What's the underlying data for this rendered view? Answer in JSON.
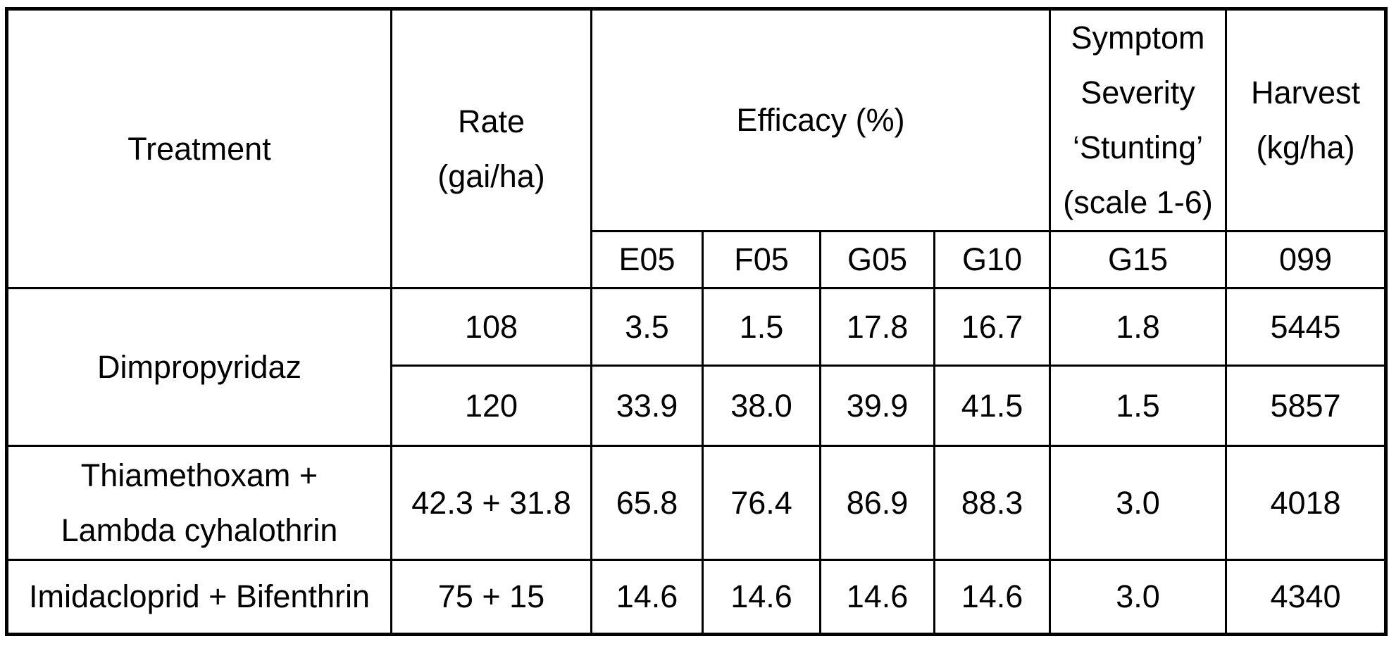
{
  "table": {
    "headers": {
      "treatment": "Treatment",
      "rate": "Rate\n(gai/ha)",
      "efficacy": "Efficacy (%)",
      "symptom_severity": "Symptom\nSeverity\n‘Stunting’\n(scale 1-6)",
      "harvest": "Harvest\n(kg/ha)"
    },
    "subheaders": [
      "E05",
      "F05",
      "G05",
      "G10",
      "G15",
      "099"
    ],
    "rows": [
      {
        "treatment": "Dimpropyridaz",
        "entries": [
          {
            "rate": "108",
            "values": [
              "3.5",
              "1.5",
              "17.8",
              "16.7",
              "1.8",
              "5445"
            ]
          },
          {
            "rate": "120",
            "values": [
              "33.9",
              "38.0",
              "39.9",
              "41.5",
              "1.5",
              "5857"
            ]
          }
        ]
      },
      {
        "treatment": "Thiamethoxam +\nLambda cyhalothrin",
        "entries": [
          {
            "rate": "42.3 + 31.8",
            "values": [
              "65.8",
              "76.4",
              "86.9",
              "88.3",
              "3.0",
              "4018"
            ]
          }
        ]
      },
      {
        "treatment": "Imidacloprid + Bifenthrin",
        "entries": [
          {
            "rate": "75 + 15",
            "values": [
              "14.6",
              "14.6",
              "14.6",
              "14.6",
              "3.0",
              "4340"
            ]
          }
        ]
      }
    ]
  },
  "colors": {
    "background": "#ffffff",
    "text": "#000000",
    "border": "#000000"
  }
}
